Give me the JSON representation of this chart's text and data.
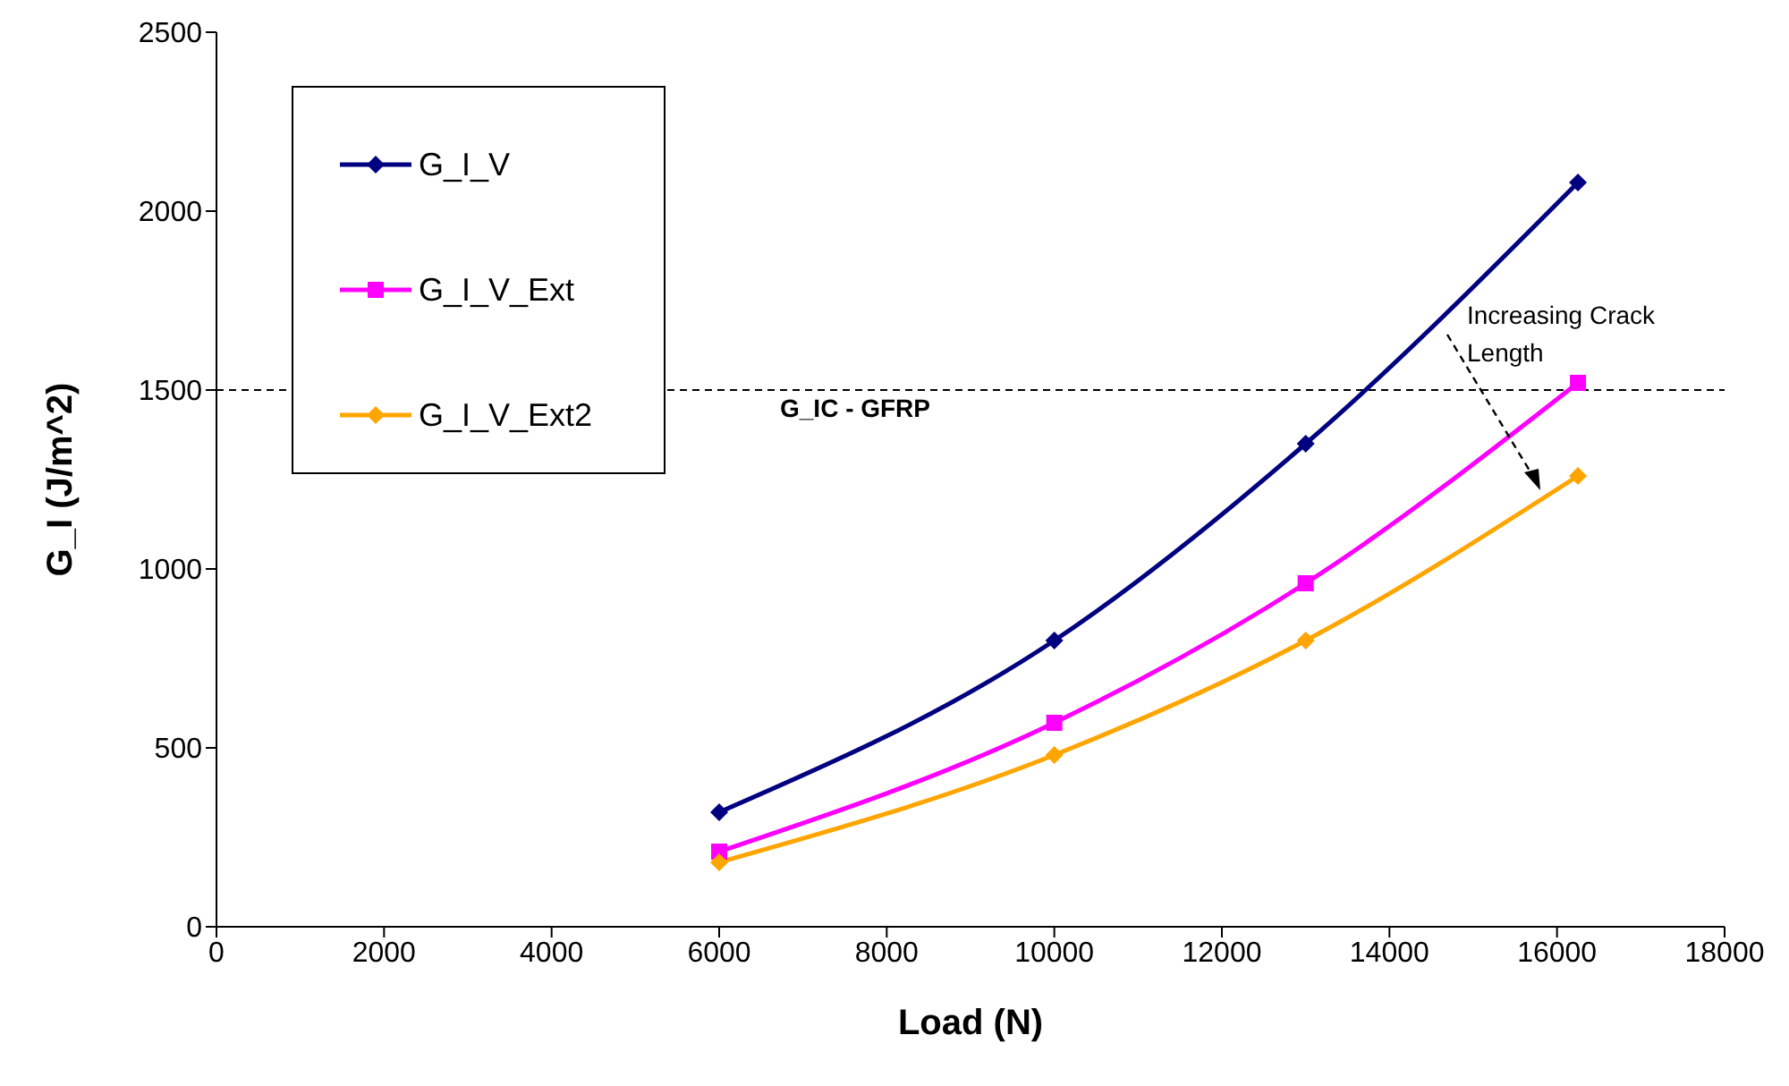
{
  "chart_data": {
    "type": "line",
    "xlabel": "Load (N)",
    "ylabel": "G_I (J/m^2)",
    "series": [
      {
        "name": "G_I_V",
        "color": "#000080",
        "marker": "diamond",
        "x": [
          6000,
          10000,
          13000,
          16250
        ],
        "values": [
          320,
          800,
          1350,
          2080
        ]
      },
      {
        "name": "G_I_V_Ext",
        "color": "#ff00ff",
        "marker": "square",
        "x": [
          6000,
          10000,
          13000,
          16250
        ],
        "values": [
          210,
          570,
          960,
          1520
        ]
      },
      {
        "name": "G_I_V_Ext2",
        "color": "#ffa500",
        "marker": "diamond",
        "x": [
          6000,
          10000,
          13000,
          16250
        ],
        "values": [
          180,
          480,
          800,
          1260
        ]
      }
    ],
    "xlim": [
      0,
      18000
    ],
    "xticks": [
      0,
      2000,
      4000,
      6000,
      8000,
      10000,
      12000,
      14000,
      16000,
      18000
    ],
    "ylim": [
      0,
      2500
    ],
    "yticks": [
      0,
      500,
      1000,
      1500,
      2000,
      2500
    ],
    "ref_lines": [
      {
        "axis": "y",
        "value": 1500,
        "label": "G_IC - GFRP",
        "line_style": "dashed",
        "color": "#000000"
      }
    ],
    "annotations": [
      "Increasing Crack Length"
    ],
    "legend": "top left",
    "grid": false
  }
}
